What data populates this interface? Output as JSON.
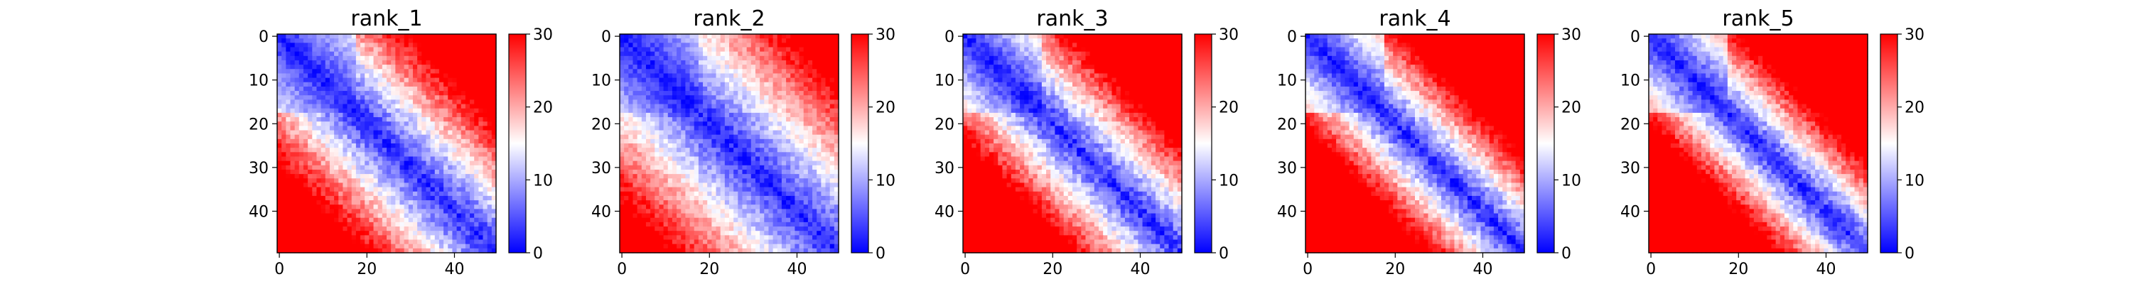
{
  "chart_data": [
    {
      "type": "heatmap",
      "title": "rank_1",
      "size": 50,
      "vmin": 0,
      "vmax": 30,
      "colormap": "bwr",
      "x_ticks": [
        0,
        20,
        40
      ],
      "y_ticks": [
        0,
        10,
        20,
        30,
        40
      ],
      "colorbar_ticks": [
        0,
        10,
        20,
        30
      ],
      "params": {
        "slope": 0.62,
        "power": 0.85,
        "near_boost": 0.6,
        "amp": 0.2,
        "seed": 1
      }
    },
    {
      "type": "heatmap",
      "title": "rank_2",
      "size": 50,
      "vmin": 0,
      "vmax": 30,
      "colormap": "bwr",
      "x_ticks": [
        0,
        20,
        40
      ],
      "y_ticks": [
        0,
        10,
        20,
        30,
        40
      ],
      "colorbar_ticks": [
        0,
        10,
        20,
        30
      ],
      "params": {
        "slope": 0.48,
        "power": 0.85,
        "near_boost": 0.5,
        "amp": 0.18,
        "seed": 2
      }
    },
    {
      "type": "heatmap",
      "title": "rank_3",
      "size": 50,
      "vmin": 0,
      "vmax": 30,
      "colormap": "bwr",
      "x_ticks": [
        0,
        20,
        40
      ],
      "y_ticks": [
        0,
        10,
        20,
        30,
        40
      ],
      "colorbar_ticks": [
        0,
        10,
        20,
        30
      ],
      "params": {
        "slope": 0.75,
        "power": 0.85,
        "near_boost": 0.6,
        "amp": 0.2,
        "seed": 3
      }
    },
    {
      "type": "heatmap",
      "title": "rank_4",
      "size": 50,
      "vmin": 0,
      "vmax": 30,
      "colormap": "bwr",
      "x_ticks": [
        0,
        20,
        40
      ],
      "y_ticks": [
        0,
        10,
        20,
        30,
        40
      ],
      "colorbar_ticks": [
        0,
        10,
        20,
        30
      ],
      "params": {
        "slope": 0.85,
        "power": 0.85,
        "near_boost": 0.6,
        "amp": 0.2,
        "seed": 4
      }
    },
    {
      "type": "heatmap",
      "title": "rank_5",
      "size": 50,
      "vmin": 0,
      "vmax": 30,
      "colormap": "bwr",
      "x_ticks": [
        0,
        20,
        40
      ],
      "y_ticks": [
        0,
        10,
        20,
        30,
        40
      ],
      "colorbar_ticks": [
        0,
        10,
        20,
        30
      ],
      "params": {
        "slope": 0.9,
        "power": 0.85,
        "near_boost": 0.6,
        "amp": 0.2,
        "seed": 5
      }
    }
  ]
}
